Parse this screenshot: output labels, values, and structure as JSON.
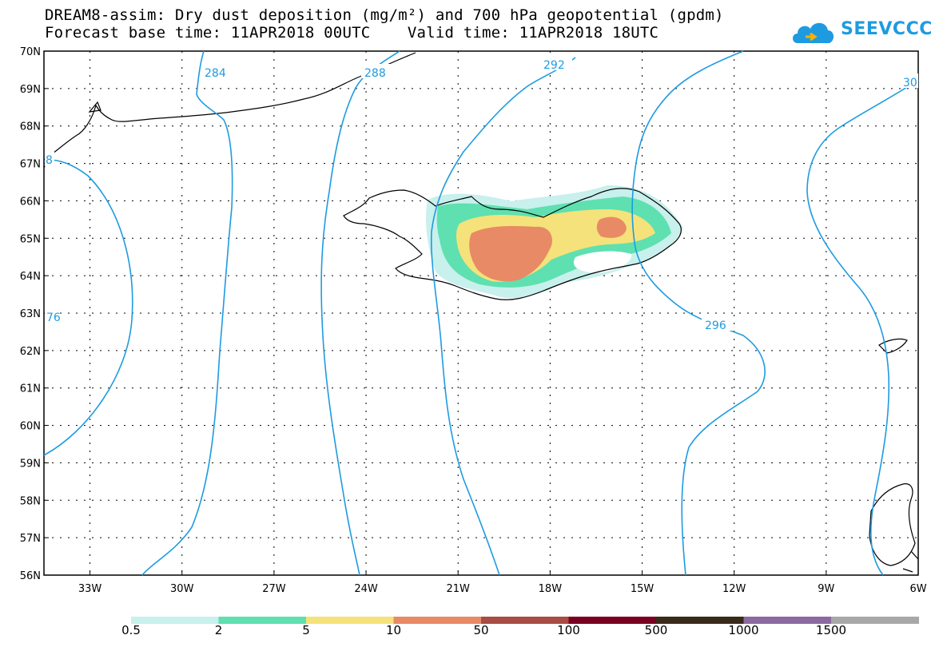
{
  "header": {
    "title_line1": "DREAM8-assim: Dry dust deposition (mg/m²) and 700 hPa geopotential (gpdm)",
    "title_line2": "Forecast base time: 11APR2018 00UTC    Valid time: 11APR2018 18UTC",
    "logo_text": "SEEVCCC",
    "logo_icon": "cloud-logo-icon",
    "logo_color": "#1e9be0"
  },
  "map": {
    "lat_labels": [
      "70N",
      "69N",
      "68N",
      "67N",
      "66N",
      "65N",
      "64N",
      "63N",
      "62N",
      "61N",
      "60N",
      "59N",
      "58N",
      "57N",
      "56N"
    ],
    "lon_labels": [
      "33W",
      "30W",
      "27W",
      "24W",
      "21W",
      "18W",
      "15W",
      "12W",
      "9W",
      "6W"
    ],
    "lat_range": [
      56,
      70
    ],
    "lon_range": [
      -34.5,
      -6
    ],
    "grid": "dotted",
    "contour_color": "#1e9be0",
    "contour_labels": [
      "284",
      "288",
      "292",
      "296",
      "30",
      "76",
      "8"
    ]
  },
  "legend": {
    "labels": [
      "0.5",
      "2",
      "5",
      "10",
      "50",
      "100",
      "500",
      "1000",
      "1500"
    ],
    "colors": [
      "#c8f0ec",
      "#5fe0b0",
      "#f5e27a",
      "#e88a66",
      "#a84c44",
      "#7a0022",
      "#3a2a1a",
      "#8a6aa0",
      "#a8a8a8"
    ]
  }
}
